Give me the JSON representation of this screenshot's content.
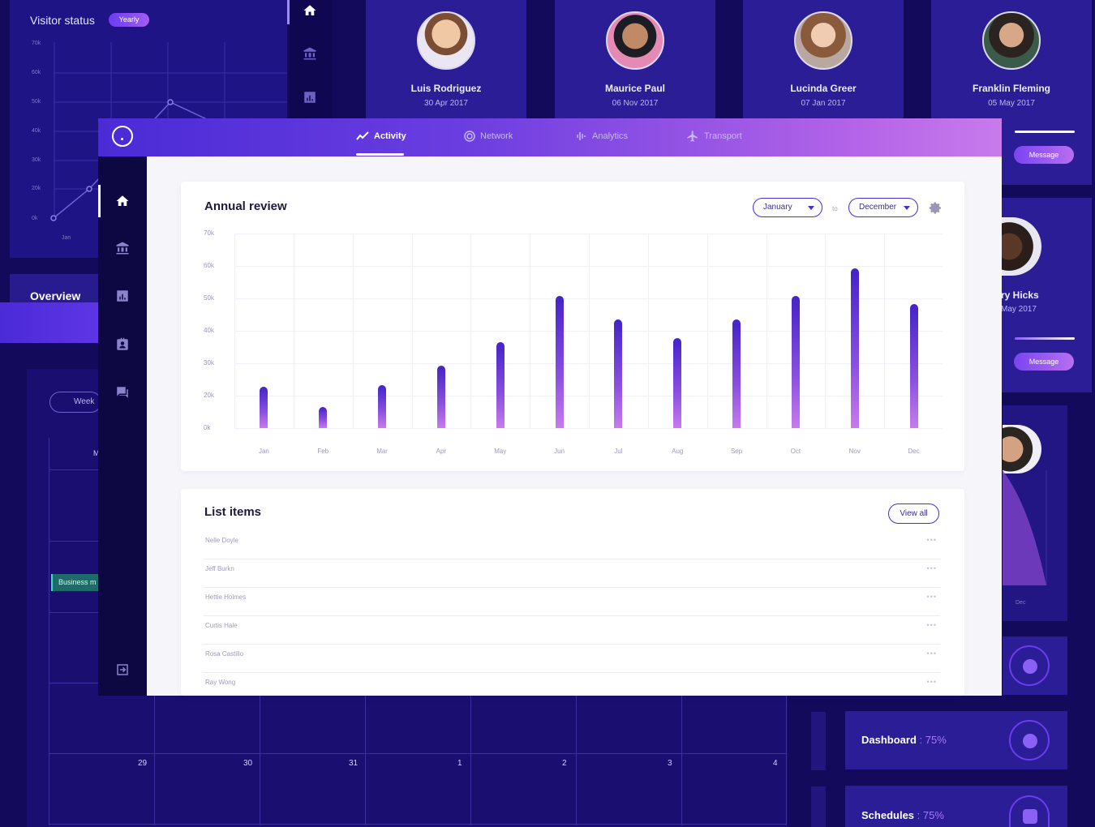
{
  "visitor": {
    "title": "Visitor status",
    "badge": "Yearly",
    "y_ticks": [
      "70k",
      "60k",
      "50k",
      "40k",
      "30k",
      "20k",
      "0k"
    ],
    "x_tick": "Jan"
  },
  "profiles": [
    {
      "name": "Luis Rodriguez",
      "date": "30 Apr 2017"
    },
    {
      "name": "Maurice Paul",
      "date": "06 Nov 2017"
    },
    {
      "name": "Lucinda Greer",
      "date": "07 Jan 2017"
    },
    {
      "name": "Franklin Fleming",
      "date": "05 May 2017"
    }
  ],
  "right_profiles": [
    {
      "name": "ry Hicks",
      "date": "May 2017"
    }
  ],
  "message_label": "Message",
  "overview_label": "Overview",
  "calendar": {
    "week_label": "Week",
    "header_partial": "M",
    "event": "Business m",
    "dates": [
      "29",
      "30",
      "31",
      "1",
      "2",
      "3",
      "4"
    ]
  },
  "partial_dec": "Dec",
  "stats": [
    {
      "label": "Dashboard",
      "value": ": 75%"
    },
    {
      "label": "Schedules",
      "value": ": 75%"
    }
  ],
  "tabs": [
    {
      "label": "Activity",
      "icon": "activity-icon",
      "active": true
    },
    {
      "label": "Network",
      "icon": "network-icon",
      "active": false
    },
    {
      "label": "Analytics",
      "icon": "analytics-icon",
      "active": false
    },
    {
      "label": "Transport",
      "icon": "transport-icon",
      "active": false
    }
  ],
  "annual": {
    "title": "Annual review",
    "from": "January",
    "to_label": "to",
    "to": "December"
  },
  "list": {
    "title": "List items",
    "view_all": "View all",
    "items": [
      "Nelle Doyle",
      "Jeff Burkn",
      "Hettie Holmes",
      "Curtis Hale",
      "Rosa Castillo",
      "Ray Wong"
    ]
  },
  "colors": {
    "accent": "#4a2bd6",
    "accent_light": "#c77aed",
    "background": "#140a5c"
  },
  "chart_data": {
    "type": "bar",
    "title": "Annual review",
    "categories": [
      "Jan",
      "Feb",
      "Mar",
      "Apr",
      "May",
      "Jun",
      "Jul",
      "Aug",
      "Sep",
      "Oct",
      "Nov",
      "Dec"
    ],
    "values": [
      15000,
      7500,
      15500,
      22500,
      31000,
      47500,
      39000,
      32500,
      39000,
      47500,
      57500,
      44500
    ],
    "y_ticks": [
      "70k",
      "60k",
      "50k",
      "40k",
      "30k",
      "20k",
      "0k"
    ],
    "ylim": [
      0,
      70000
    ],
    "grid": true
  }
}
